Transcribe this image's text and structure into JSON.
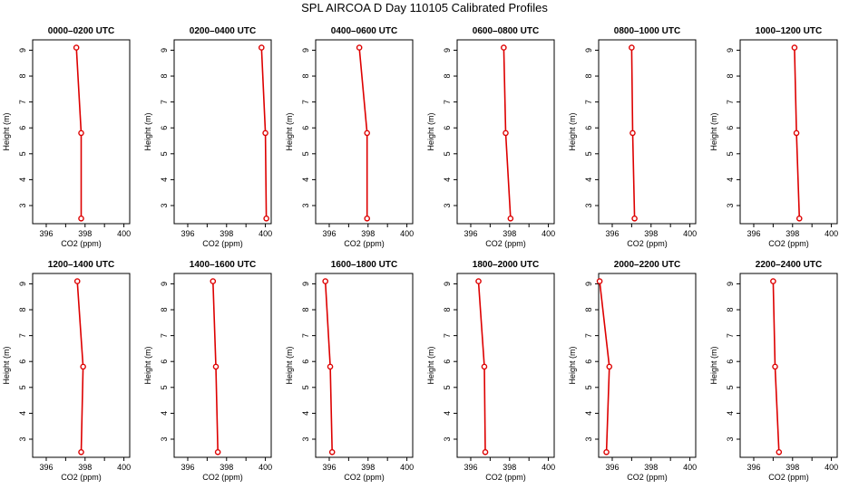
{
  "figure_title": "SPL AIRCOA D  Day 110105  Calibrated Profiles",
  "series_color": "#dd0000",
  "chart_data": [
    {
      "type": "line",
      "title": "0000–0200 UTC",
      "xlabel": "CO2 (ppm)",
      "ylabel": "Height (m)",
      "xlim": [
        395.3,
        400.3
      ],
      "ylim": [
        2.3,
        9.4
      ],
      "xticks": [
        396,
        398,
        400
      ],
      "yticks": [
        3,
        4,
        5,
        6,
        7,
        8,
        9
      ],
      "grid": false,
      "points": [
        {
          "co2": 397.55,
          "height": 9.1
        },
        {
          "co2": 397.8,
          "height": 5.8
        },
        {
          "co2": 397.8,
          "height": 2.5
        }
      ]
    },
    {
      "type": "line",
      "title": "0200–0400 UTC",
      "xlabel": "CO2 (ppm)",
      "ylabel": "Height (m)",
      "xlim": [
        395.3,
        400.3
      ],
      "ylim": [
        2.3,
        9.4
      ],
      "xticks": [
        396,
        398,
        400
      ],
      "yticks": [
        3,
        4,
        5,
        6,
        7,
        8,
        9
      ],
      "grid": false,
      "points": [
        {
          "co2": 399.8,
          "height": 9.1
        },
        {
          "co2": 400.0,
          "height": 5.8
        },
        {
          "co2": 400.05,
          "height": 2.5
        }
      ]
    },
    {
      "type": "line",
      "title": "0400–0600 UTC",
      "xlabel": "CO2 (ppm)",
      "ylabel": "Height (m)",
      "xlim": [
        395.3,
        400.3
      ],
      "ylim": [
        2.3,
        9.4
      ],
      "xticks": [
        396,
        398,
        400
      ],
      "yticks": [
        3,
        4,
        5,
        6,
        7,
        8,
        9
      ],
      "grid": false,
      "points": [
        {
          "co2": 397.55,
          "height": 9.1
        },
        {
          "co2": 397.95,
          "height": 5.8
        },
        {
          "co2": 397.95,
          "height": 2.5
        }
      ]
    },
    {
      "type": "line",
      "title": "0600–0800 UTC",
      "xlabel": "CO2 (ppm)",
      "ylabel": "Height (m)",
      "xlim": [
        395.3,
        400.3
      ],
      "ylim": [
        2.3,
        9.4
      ],
      "xticks": [
        396,
        398,
        400
      ],
      "yticks": [
        3,
        4,
        5,
        6,
        7,
        8,
        9
      ],
      "grid": false,
      "points": [
        {
          "co2": 397.7,
          "height": 9.1
        },
        {
          "co2": 397.8,
          "height": 5.8
        },
        {
          "co2": 398.05,
          "height": 2.5
        }
      ]
    },
    {
      "type": "line",
      "title": "0800–1000 UTC",
      "xlabel": "CO2 (ppm)",
      "ylabel": "Height (m)",
      "xlim": [
        395.3,
        400.3
      ],
      "ylim": [
        2.3,
        9.4
      ],
      "xticks": [
        396,
        398,
        400
      ],
      "yticks": [
        3,
        4,
        5,
        6,
        7,
        8,
        9
      ],
      "grid": false,
      "points": [
        {
          "co2": 397.0,
          "height": 9.1
        },
        {
          "co2": 397.05,
          "height": 5.8
        },
        {
          "co2": 397.15,
          "height": 2.5
        }
      ]
    },
    {
      "type": "line",
      "title": "1000–1200 UTC",
      "xlabel": "CO2 (ppm)",
      "ylabel": "Height (m)",
      "xlim": [
        395.3,
        400.3
      ],
      "ylim": [
        2.3,
        9.4
      ],
      "xticks": [
        396,
        398,
        400
      ],
      "yticks": [
        3,
        4,
        5,
        6,
        7,
        8,
        9
      ],
      "grid": false,
      "points": [
        {
          "co2": 398.1,
          "height": 9.1
        },
        {
          "co2": 398.2,
          "height": 5.8
        },
        {
          "co2": 398.35,
          "height": 2.5
        }
      ]
    },
    {
      "type": "line",
      "title": "1200–1400 UTC",
      "xlabel": "CO2 (ppm)",
      "ylabel": "Height (m)",
      "xlim": [
        395.3,
        400.3
      ],
      "ylim": [
        2.3,
        9.4
      ],
      "xticks": [
        396,
        398,
        400
      ],
      "yticks": [
        3,
        4,
        5,
        6,
        7,
        8,
        9
      ],
      "grid": false,
      "points": [
        {
          "co2": 397.6,
          "height": 9.1
        },
        {
          "co2": 397.9,
          "height": 5.8
        },
        {
          "co2": 397.8,
          "height": 2.5
        }
      ]
    },
    {
      "type": "line",
      "title": "1400–1600 UTC",
      "xlabel": "CO2 (ppm)",
      "ylabel": "Height (m)",
      "xlim": [
        395.3,
        400.3
      ],
      "ylim": [
        2.3,
        9.4
      ],
      "xticks": [
        396,
        398,
        400
      ],
      "yticks": [
        3,
        4,
        5,
        6,
        7,
        8,
        9
      ],
      "grid": false,
      "points": [
        {
          "co2": 397.3,
          "height": 9.1
        },
        {
          "co2": 397.45,
          "height": 5.8
        },
        {
          "co2": 397.55,
          "height": 2.5
        }
      ]
    },
    {
      "type": "line",
      "title": "1600–1800 UTC",
      "xlabel": "CO2 (ppm)",
      "ylabel": "Height (m)",
      "xlim": [
        395.3,
        400.3
      ],
      "ylim": [
        2.3,
        9.4
      ],
      "xticks": [
        396,
        398,
        400
      ],
      "yticks": [
        3,
        4,
        5,
        6,
        7,
        8,
        9
      ],
      "grid": false,
      "points": [
        {
          "co2": 395.8,
          "height": 9.1
        },
        {
          "co2": 396.05,
          "height": 5.8
        },
        {
          "co2": 396.15,
          "height": 2.5
        }
      ]
    },
    {
      "type": "line",
      "title": "1800–2000 UTC",
      "xlabel": "CO2 (ppm)",
      "ylabel": "Height (m)",
      "xlim": [
        395.3,
        400.3
      ],
      "ylim": [
        2.3,
        9.4
      ],
      "xticks": [
        396,
        398,
        400
      ],
      "yticks": [
        3,
        4,
        5,
        6,
        7,
        8,
        9
      ],
      "grid": false,
      "points": [
        {
          "co2": 396.4,
          "height": 9.1
        },
        {
          "co2": 396.7,
          "height": 5.8
        },
        {
          "co2": 396.75,
          "height": 2.5
        }
      ]
    },
    {
      "type": "line",
      "title": "2000–2200 UTC",
      "xlabel": "CO2 (ppm)",
      "ylabel": "Height (m)",
      "xlim": [
        395.3,
        400.3
      ],
      "ylim": [
        2.3,
        9.4
      ],
      "xticks": [
        396,
        398,
        400
      ],
      "yticks": [
        3,
        4,
        5,
        6,
        7,
        8,
        9
      ],
      "grid": false,
      "points": [
        {
          "co2": 395.35,
          "height": 9.1
        },
        {
          "co2": 395.85,
          "height": 5.8
        },
        {
          "co2": 395.7,
          "height": 2.5
        }
      ]
    },
    {
      "type": "line",
      "title": "2200–2400 UTC",
      "xlabel": "CO2 (ppm)",
      "ylabel": "Height (m)",
      "xlim": [
        395.3,
        400.3
      ],
      "ylim": [
        2.3,
        9.4
      ],
      "xticks": [
        396,
        398,
        400
      ],
      "yticks": [
        3,
        4,
        5,
        6,
        7,
        8,
        9
      ],
      "grid": false,
      "points": [
        {
          "co2": 397.0,
          "height": 9.1
        },
        {
          "co2": 397.1,
          "height": 5.8
        },
        {
          "co2": 397.3,
          "height": 2.5
        }
      ]
    }
  ]
}
